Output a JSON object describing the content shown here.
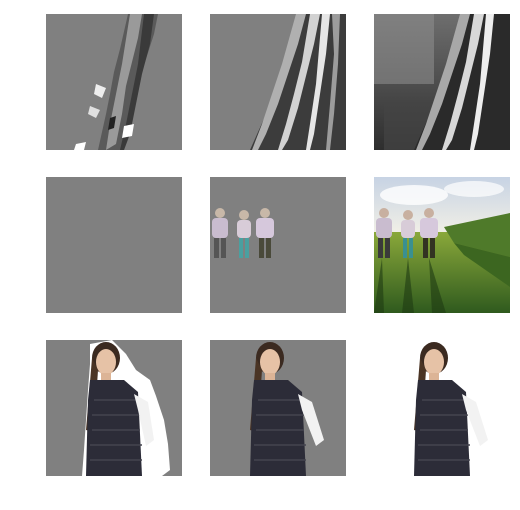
{
  "figure": {
    "rows": [
      {
        "subject": "hair-closeup",
        "tiles": [
          {
            "kind": "coarse-mask",
            "background": "#808080"
          },
          {
            "kind": "refined-mask",
            "background": "#808080"
          },
          {
            "kind": "original-photo"
          }
        ]
      },
      {
        "subject": "three-people-walking-in-field",
        "tiles": [
          {
            "kind": "empty-mask",
            "background": "#808080"
          },
          {
            "kind": "refined-mask",
            "background": "#808080"
          },
          {
            "kind": "original-photo"
          }
        ]
      },
      {
        "subject": "woman-in-quilted-vest",
        "tiles": [
          {
            "kind": "coarse-mask",
            "background": "#808080"
          },
          {
            "kind": "refined-mask",
            "background": "#808080"
          },
          {
            "kind": "cutout-on-white",
            "background": "#ffffff"
          }
        ]
      }
    ]
  }
}
